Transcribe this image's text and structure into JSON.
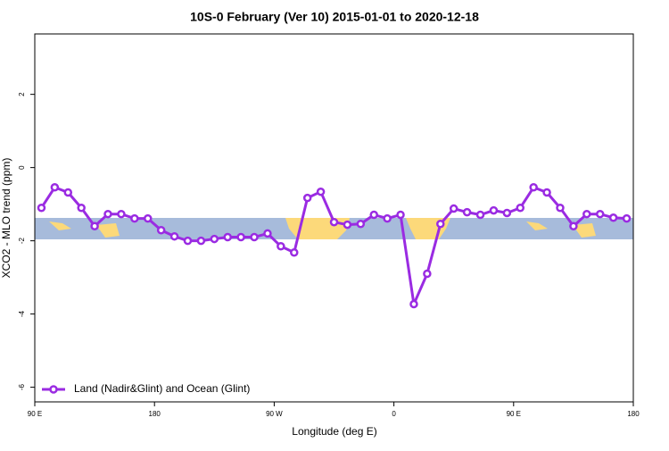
{
  "chart_data": {
    "type": "line",
    "title": "10S-0 February (Ver 10)   2015-01-01 to 2020-12-18",
    "x_label": "Longitude (deg E)",
    "y_label": "XCO2 - MLO trend (ppm)",
    "x": [
      95,
      105,
      115,
      125,
      135,
      145,
      155,
      165,
      175,
      185,
      195,
      205,
      215,
      225,
      235,
      245,
      255,
      265,
      275,
      285,
      295,
      305,
      315,
      325,
      335,
      345,
      355,
      365,
      375,
      385,
      395,
      405,
      415,
      425,
      435,
      445,
      455,
      465,
      475,
      485,
      495,
      505,
      515,
      525,
      535
    ],
    "series": [
      {
        "name": "Land (Nadir&Glint) and Ocean (Glint)",
        "color": "#9a2be2",
        "values": [
          -1.1,
          -0.54,
          -0.68,
          -1.1,
          -1.6,
          -1.27,
          -1.27,
          -1.39,
          -1.39,
          -1.71,
          -1.88,
          -2.0,
          -2.0,
          -1.95,
          -1.9,
          -1.9,
          -1.9,
          -1.8,
          -2.15,
          -2.32,
          -0.83,
          -0.66,
          -1.49,
          -1.56,
          -1.54,
          -1.29,
          -1.39,
          -1.29,
          -3.73,
          -2.9,
          -1.54,
          -1.12,
          -1.22,
          -1.29,
          -1.17,
          -1.24,
          -1.1,
          -0.54,
          -0.68,
          -1.1,
          -1.6,
          -1.27,
          -1.27,
          -1.37,
          -1.39
        ]
      }
    ],
    "xlim": [
      90,
      540
    ],
    "xticks": [
      {
        "value": 90,
        "label": "90 E"
      },
      180,
      {
        "value": 270,
        "label": "90 W"
      },
      {
        "value": 360,
        "label": "0"
      },
      {
        "value": 450,
        "label": "90 E"
      },
      {
        "value": 540,
        "label": "180"
      }
    ],
    "ylim": [
      -6.4,
      3.65
    ],
    "yticks": [
      -6,
      -4,
      -2,
      0,
      2
    ],
    "legend": "bottomleft"
  }
}
